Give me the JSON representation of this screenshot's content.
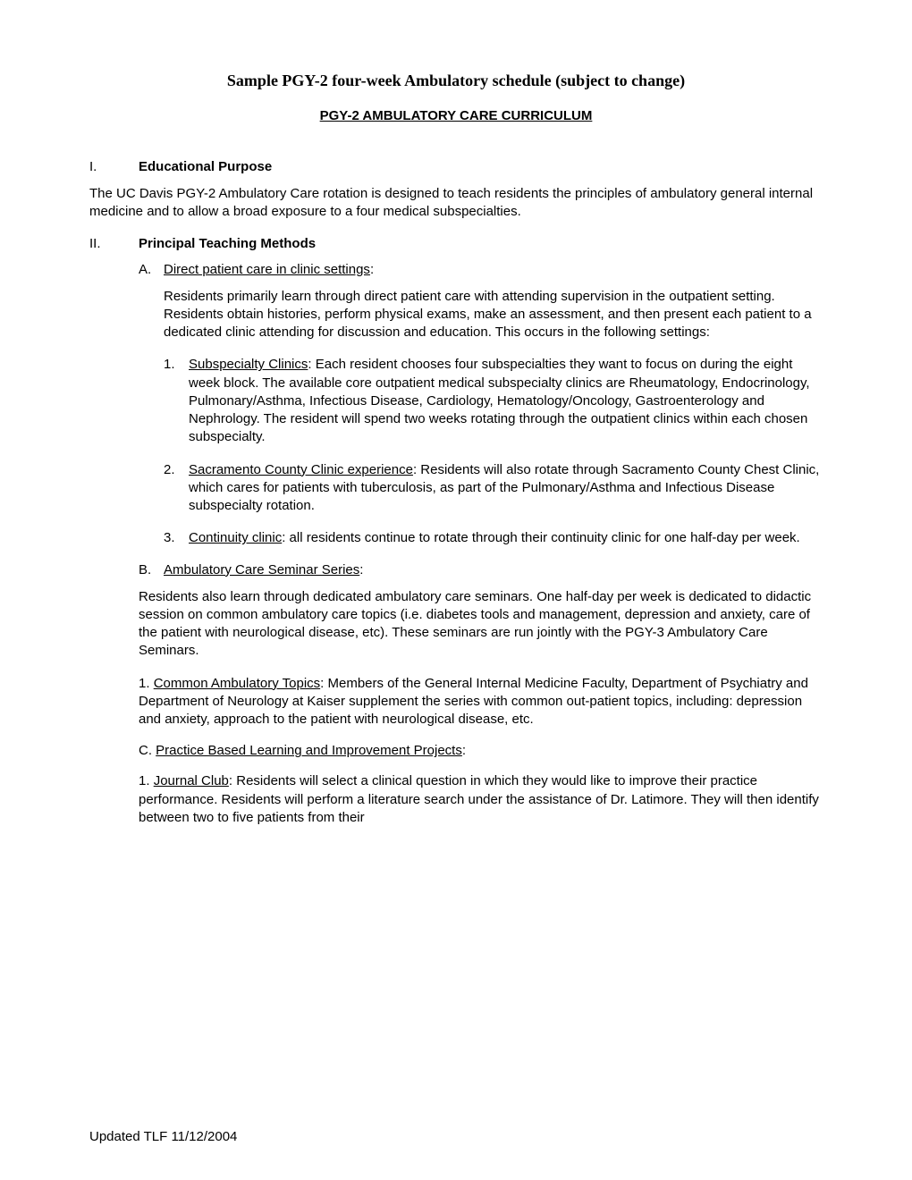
{
  "main_title": "Sample PGY-2 four-week Ambulatory schedule (subject to change)",
  "subtitle": "PGY-2 AMBULATORY CARE CURRICULUM",
  "section1": {
    "roman": "I.",
    "heading": "Educational Purpose",
    "intro": "The UC Davis PGY-2 Ambulatory Care rotation is designed to teach residents the principles of ambulatory general internal medicine and to allow a broad exposure to a four medical subspecialties."
  },
  "section2": {
    "roman": "II.",
    "heading": "Principal Teaching Methods",
    "subA": {
      "letter": "A.",
      "title": "Direct patient care in clinic settings",
      "colon": ":",
      "para": "Residents primarily learn through direct patient care with attending supervision in the outpatient setting.  Residents obtain histories, perform physical exams, make an assessment, and then present each patient to a dedicated clinic attending for discussion and education.  This occurs in the following settings:",
      "items": [
        {
          "num": "1.",
          "title": "Subspecialty Clinics",
          "text": ": Each resident chooses four subspecialties they want to focus on during the eight week block. The available core outpatient medical subspecialty clinics are Rheumatology, Endocrinology, Pulmonary/Asthma, Infectious Disease, Cardiology, Hematology/Oncology, Gastroenterology and Nephrology.  The resident will spend two weeks rotating through the outpatient clinics within each chosen subspecialty."
        },
        {
          "num": "2.",
          "title": "Sacramento County Clinic experience",
          "text": ":  Residents will also rotate through Sacramento County Chest Clinic, which cares for patients with tuberculosis, as part of the Pulmonary/Asthma and Infectious Disease subspecialty rotation."
        },
        {
          "num": "3.",
          "title": "Continuity clinic",
          "text": ":  all residents continue to rotate through their continuity clinic for one half-day per week."
        }
      ]
    },
    "subB": {
      "letter": "B.",
      "title": "Ambulatory Care Seminar Series",
      "colon": ":",
      "para": "Residents also learn through dedicated ambulatory care seminars.  One half-day per week is dedicated to didactic session on common ambulatory care topics (i.e. diabetes tools and management, depression and anxiety, care of the patient with neurological disease, etc).  These seminars are run jointly with the PGY-3 Ambulatory Care Seminars.",
      "item1": {
        "num": "1. ",
        "title": "Common Ambulatory Topics",
        "text": ":  Members of the General Internal Medicine Faculty, Department of Psychiatry and Department of Neurology at Kaiser supplement the series with common out-patient topics, including: depression and anxiety, approach to the patient with neurological disease, etc."
      }
    },
    "subC": {
      "letter": "C. ",
      "title": "Practice Based Learning and Improvement Projects",
      "colon": ":",
      "item1": {
        "num": "1. ",
        "title": "Journal Club",
        "text": ": Residents will select a clinical question in which they would like to improve their practice performance.  Residents will perform a literature search under the assistance of Dr. Latimore.  They will then identify between two to five patients from their"
      }
    }
  },
  "footer": "Updated TLF 11/12/2004"
}
